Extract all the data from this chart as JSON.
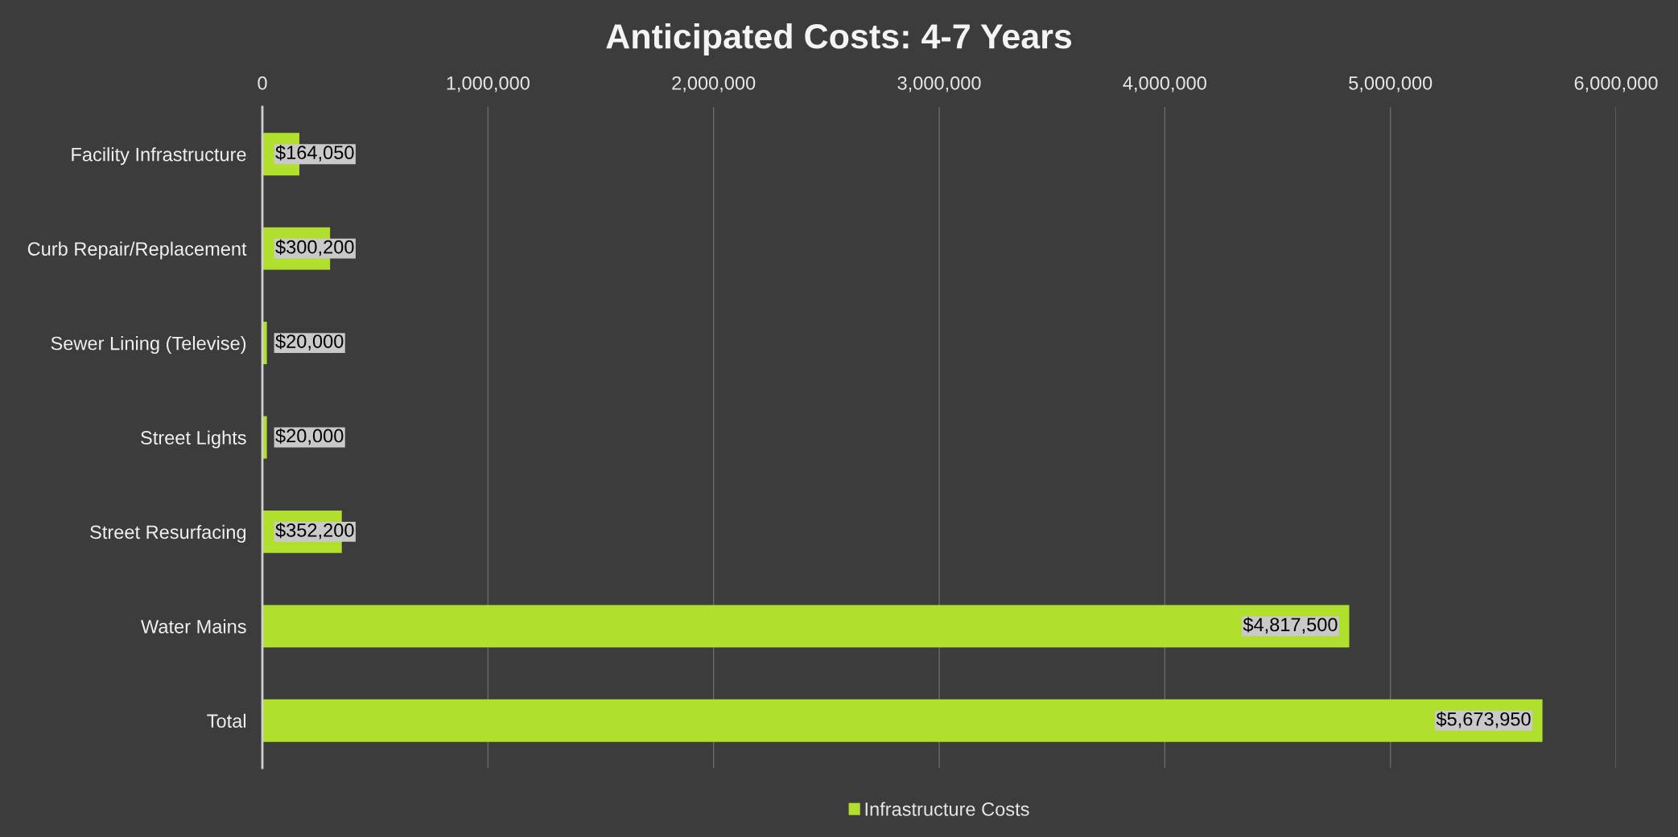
{
  "chart_data": {
    "type": "bar",
    "orientation": "horizontal",
    "title": "Anticipated Costs: 4-7 Years",
    "categories": [
      "Facility Infrastructure",
      "Curb Repair/Replacement",
      "Sewer Lining (Televise)",
      "Street Lights",
      "Street Resurfacing",
      "Water Mains",
      "Total"
    ],
    "series": [
      {
        "name": "Infrastructure Costs",
        "color": "#b0df2e",
        "values": [
          164050,
          300200,
          20000,
          20000,
          352200,
          4817500,
          5673950
        ],
        "value_labels": [
          "$164,050",
          "$300,200",
          "$20,000",
          "$20,000",
          "$352,200",
          "$4,817,500",
          "$5,673,950"
        ]
      }
    ],
    "xlim": [
      0,
      6000000
    ],
    "xticks": [
      0,
      {
        "value": 1000000,
        "label": "1,000,000"
      },
      {
        "value": 2000000,
        "label": "2,000,000"
      },
      {
        "value": 3000000,
        "label": "3,000,000"
      },
      {
        "value": 4000000,
        "label": "4,000,000"
      },
      {
        "value": 5000000,
        "label": "5,000,000"
      },
      {
        "value": 6000000,
        "label": "6,000,000"
      }
    ],
    "grid": "x",
    "legend": "bottom"
  }
}
